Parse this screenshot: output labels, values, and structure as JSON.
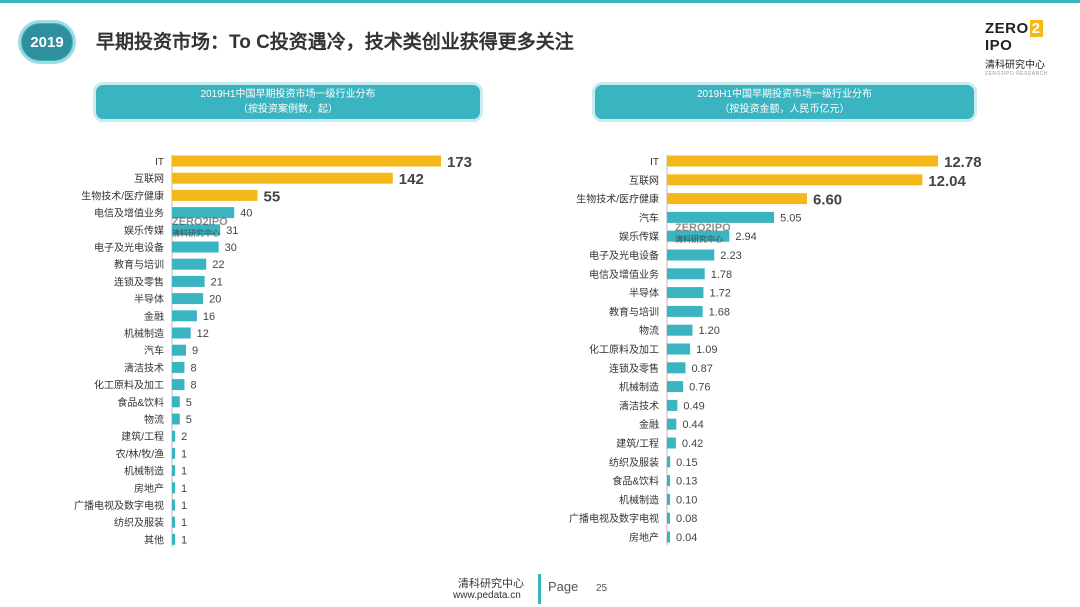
{
  "header": {
    "year": "2019",
    "title": "早期投资市场：To C投资遇冷，技术类创业获得更多关注"
  },
  "logo": {
    "main_a": "ZERO",
    "main_b": "2",
    "main_c": "IPO",
    "sub": "清科研究中心",
    "tiny": "ZERO2IPO RESEARCH"
  },
  "watermark": {
    "main": "ZERO2IPO",
    "sub": "清科研究中心"
  },
  "footer": {
    "name": "清科研究中心",
    "url": "www.pedata.cn",
    "page_label": "Page",
    "page_number": "25"
  },
  "colors": {
    "accent": "#3bb4c1",
    "highlight": "#f5b81b"
  },
  "chart_data": [
    {
      "type": "bar",
      "orientation": "horizontal",
      "title": "2019H1中国早期投资市场一级行业分布",
      "subtitle": "（按投资案例数，起）",
      "categories": [
        "IT",
        "互联网",
        "生物技术/医疗健康",
        "电信及增值业务",
        "娱乐传媒",
        "电子及光电设备",
        "教育与培训",
        "连锁及零售",
        "半导体",
        "金融",
        "机械制造",
        "汽车",
        "清洁技术",
        "化工原料及加工",
        "食品&饮料",
        "物流",
        "建筑/工程",
        "农/林/牧/渔",
        "机械制造",
        "房地产",
        "广播电视及数字电视",
        "纺织及服装",
        "其他"
      ],
      "values": [
        173,
        142,
        55,
        40,
        31,
        30,
        22,
        21,
        20,
        16,
        12,
        9,
        8,
        8,
        5,
        5,
        2,
        1,
        1,
        1,
        1,
        1,
        1
      ],
      "value_labels": [
        "173",
        "142",
        "55",
        "40",
        "31",
        "30",
        "22",
        "21",
        "20",
        "16",
        "12",
        "9",
        "8",
        "8",
        "5",
        "5",
        "2",
        "1",
        "1",
        "1",
        "1",
        "1",
        "1"
      ],
      "highlight_count": 3
    },
    {
      "type": "bar",
      "orientation": "horizontal",
      "title": "2019H1中国早期投资市场一级行业分布",
      "subtitle": "（按投资金额，人民币亿元）",
      "categories": [
        "IT",
        "互联网",
        "生物技术/医疗健康",
        "汽车",
        "娱乐传媒",
        "电子及光电设备",
        "电信及增值业务",
        "半导体",
        "教育与培训",
        "物流",
        "化工原料及加工",
        "连锁及零售",
        "机械制造",
        "清洁技术",
        "金融",
        "建筑/工程",
        "纺织及服装",
        "食品&饮料",
        "机械制造",
        "广播电视及数字电视",
        "房地产"
      ],
      "values": [
        12.78,
        12.04,
        6.6,
        5.05,
        2.94,
        2.23,
        1.78,
        1.72,
        1.68,
        1.2,
        1.09,
        0.87,
        0.76,
        0.49,
        0.44,
        0.42,
        0.15,
        0.13,
        0.1,
        0.08,
        0.04
      ],
      "value_labels": [
        "12.78",
        "12.04",
        "6.60",
        "5.05",
        "2.94",
        "2.23",
        "1.78",
        "1.72",
        "1.68",
        "1.20",
        "1.09",
        "0.87",
        "0.76",
        "0.49",
        "0.44",
        "0.42",
        "0.15",
        "0.13",
        "0.10",
        "0.08",
        "0.04"
      ],
      "highlight_count": 3
    }
  ]
}
